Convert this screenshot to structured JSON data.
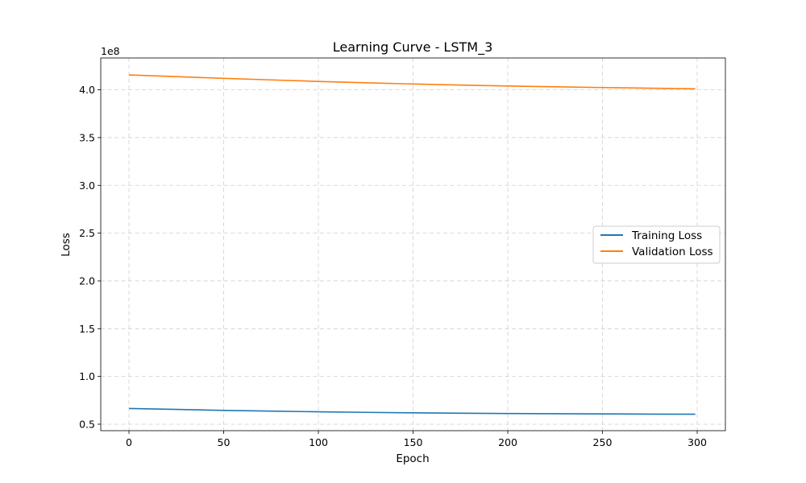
{
  "chart_data": {
    "type": "line",
    "title": "Learning Curve - LSTM_3",
    "xlabel": "Epoch",
    "ylabel": "Loss",
    "y_offset_label": "1e8",
    "xlim": [
      -14.9,
      314.9
    ],
    "ylim": [
      0.4324,
      4.3336
    ],
    "x_ticks": [
      0,
      50,
      100,
      150,
      200,
      250,
      300
    ],
    "x_tick_labels": [
      "0",
      "50",
      "100",
      "150",
      "200",
      "250",
      "300"
    ],
    "y_ticks": [
      0.5,
      1.0,
      1.5,
      2.0,
      2.5,
      3.0,
      3.5,
      4.0
    ],
    "y_tick_labels": [
      "0.5",
      "1.0",
      "1.5",
      "2.0",
      "2.5",
      "3.0",
      "3.5",
      "4.0"
    ],
    "grid": true,
    "legend_position": "center-right",
    "series": [
      {
        "name": "Training Loss",
        "color": "#1f77b4",
        "x": [
          0,
          25,
          50,
          75,
          100,
          125,
          150,
          175,
          200,
          225,
          250,
          275,
          299
        ],
        "y": [
          0.665,
          0.655,
          0.645,
          0.637,
          0.63,
          0.624,
          0.619,
          0.615,
          0.612,
          0.61,
          0.608,
          0.606,
          0.605
        ]
      },
      {
        "name": "Validation Loss",
        "color": "#ff7f0e",
        "x": [
          0,
          25,
          50,
          75,
          100,
          125,
          150,
          175,
          200,
          225,
          250,
          275,
          299
        ],
        "y": [
          4.156,
          4.138,
          4.12,
          4.104,
          4.088,
          4.074,
          4.061,
          4.05,
          4.04,
          4.032,
          4.024,
          4.017,
          4.011
        ]
      }
    ]
  }
}
